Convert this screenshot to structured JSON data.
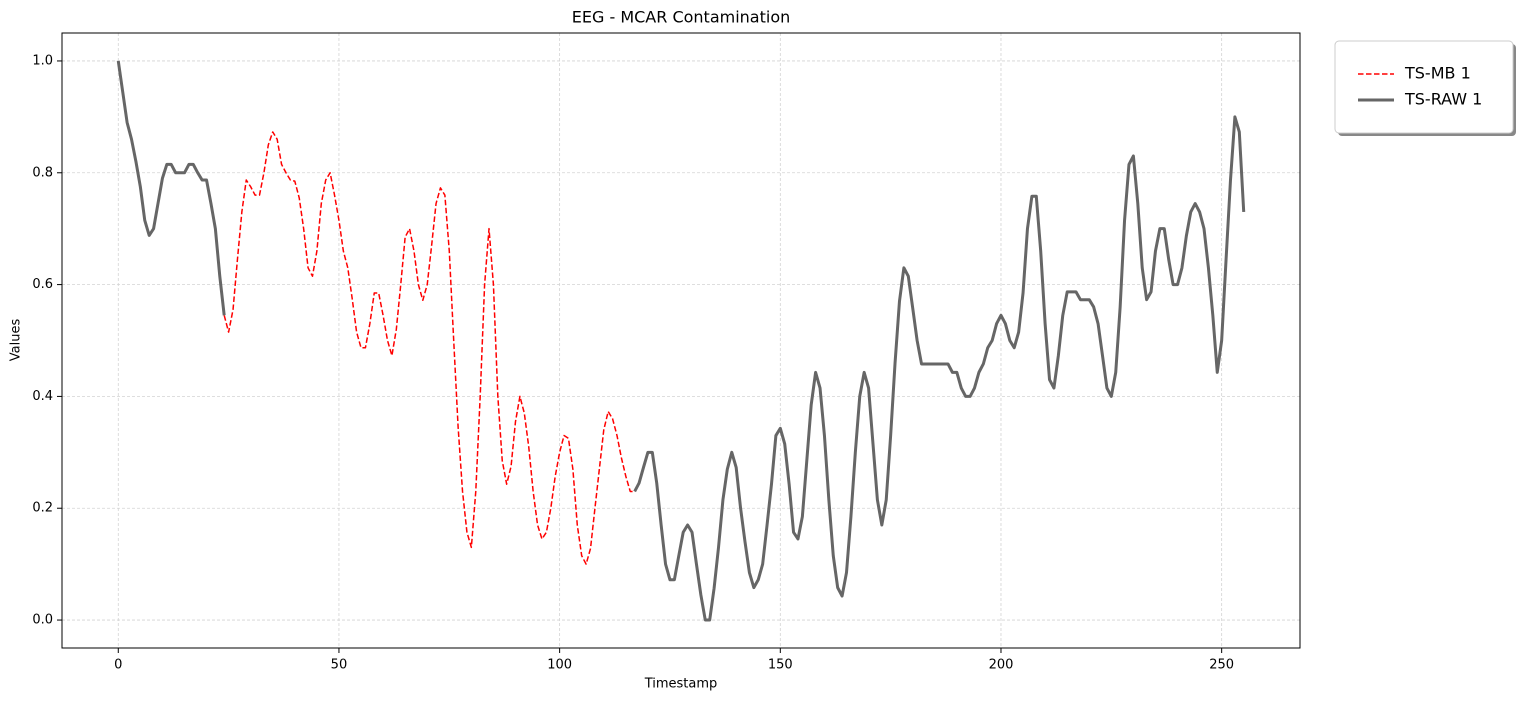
{
  "chart_data": {
    "type": "line",
    "title": "EEG - MCAR Contamination",
    "x_label": "Timestamp",
    "y_label": "Values",
    "x": [
      0,
      1,
      2,
      3,
      4,
      5,
      6,
      7,
      8,
      9,
      10,
      11,
      12,
      13,
      14,
      15,
      16,
      17,
      18,
      19,
      20,
      21,
      22,
      23,
      24,
      25,
      26,
      27,
      28,
      29,
      30,
      31,
      32,
      33,
      34,
      35,
      36,
      37,
      38,
      39,
      40,
      41,
      42,
      43,
      44,
      45,
      46,
      47,
      48,
      49,
      50,
      51,
      52,
      53,
      54,
      55,
      56,
      57,
      58,
      59,
      60,
      61,
      62,
      63,
      64,
      65,
      66,
      67,
      68,
      69,
      70,
      71,
      72,
      73,
      74,
      75,
      76,
      77,
      78,
      79,
      80,
      81,
      82,
      83,
      84,
      85,
      86,
      87,
      88,
      89,
      90,
      91,
      92,
      93,
      94,
      95,
      96,
      97,
      98,
      99,
      100,
      101,
      102,
      103,
      104,
      105,
      106,
      107,
      108,
      109,
      110,
      111,
      112,
      113,
      114,
      115,
      116,
      117,
      118,
      119,
      120,
      121,
      122,
      123,
      124,
      125,
      126,
      127,
      128,
      129,
      130,
      131,
      132,
      133,
      134,
      135,
      136,
      137,
      138,
      139,
      140,
      141,
      142,
      143,
      144,
      145,
      146,
      147,
      148,
      149,
      150,
      151,
      152,
      153,
      154,
      155,
      156,
      157,
      158,
      159,
      160,
      161,
      162,
      163,
      164,
      165,
      166,
      167,
      168,
      169,
      170,
      171,
      172,
      173,
      174,
      175,
      176,
      177,
      178,
      179,
      180,
      181,
      182,
      183,
      184,
      185,
      186,
      187,
      188,
      189,
      190,
      191,
      192,
      193,
      194,
      195,
      196,
      197,
      198,
      199,
      200,
      201,
      202,
      203,
      204,
      205,
      206,
      207,
      208,
      209,
      210,
      211,
      212,
      213,
      214,
      215,
      216,
      217,
      218,
      219,
      220,
      221,
      222,
      223,
      224,
      225,
      226,
      227,
      228,
      229,
      230,
      231,
      232,
      233,
      234,
      235,
      236,
      237,
      238,
      239,
      240,
      241,
      242,
      243,
      244,
      245,
      246,
      247,
      248,
      249,
      250,
      251,
      252,
      253,
      254,
      255
    ],
    "series": [
      {
        "name": "TS-MB 1",
        "color": "#ff0000",
        "linestyle": "dashed",
        "linewidth": 1.5,
        "values": [
          null,
          null,
          null,
          null,
          null,
          null,
          null,
          null,
          null,
          null,
          null,
          null,
          null,
          null,
          null,
          null,
          null,
          null,
          null,
          null,
          null,
          null,
          null,
          null,
          0.545,
          0.515,
          0.555,
          0.645,
          0.73,
          0.787,
          0.775,
          0.76,
          0.76,
          0.8,
          0.85,
          0.873,
          0.86,
          0.815,
          0.8,
          0.787,
          0.785,
          0.755,
          0.7,
          0.63,
          0.615,
          0.66,
          0.745,
          0.787,
          0.8,
          0.76,
          0.715,
          0.66,
          0.63,
          0.575,
          0.515,
          0.487,
          0.487,
          0.53,
          0.585,
          0.585,
          0.545,
          0.5,
          0.473,
          0.52,
          0.6,
          0.685,
          0.7,
          0.66,
          0.6,
          0.572,
          0.6,
          0.67,
          0.745,
          0.773,
          0.76,
          0.66,
          0.5,
          0.345,
          0.23,
          0.157,
          0.13,
          0.23,
          0.4,
          0.6,
          0.7,
          0.6,
          0.4,
          0.285,
          0.243,
          0.275,
          0.355,
          0.4,
          0.37,
          0.31,
          0.23,
          0.17,
          0.145,
          0.157,
          0.2,
          0.257,
          0.3,
          0.33,
          0.325,
          0.27,
          0.17,
          0.115,
          0.1,
          0.128,
          0.2,
          0.27,
          0.34,
          0.373,
          0.36,
          0.33,
          0.29,
          0.257,
          0.23,
          0.23,
          null,
          null,
          null,
          null,
          null,
          null,
          null,
          null,
          null,
          null,
          null,
          null,
          null,
          null,
          null,
          null,
          null,
          null,
          null,
          null,
          null,
          null,
          null,
          null,
          null,
          null,
          null,
          null,
          null,
          null,
          null,
          null,
          null,
          null,
          null,
          null,
          null,
          null,
          null,
          null,
          null,
          null,
          null,
          null,
          null,
          null,
          null,
          null,
          null,
          null,
          null,
          null,
          null,
          null,
          null,
          null,
          null,
          null,
          null,
          null,
          null,
          null,
          null,
          null,
          null,
          null,
          null,
          null,
          null,
          null,
          null,
          null,
          null,
          null,
          null,
          null,
          null,
          null,
          null,
          null,
          null,
          null,
          null,
          null,
          null,
          null,
          null,
          null,
          null,
          null,
          null,
          null,
          null,
          null,
          null,
          null,
          null,
          null,
          null,
          null,
          null,
          null,
          null,
          null,
          null,
          null,
          null,
          null,
          null,
          null,
          null,
          null,
          null,
          null,
          null,
          null,
          null,
          null,
          null,
          null,
          null,
          null,
          null,
          null,
          null,
          null,
          null,
          null,
          null,
          null,
          null,
          null,
          null,
          null,
          null,
          null,
          null,
          null
        ]
      },
      {
        "name": "TS-RAW 1",
        "color": "#666666",
        "linestyle": "solid",
        "linewidth": 3,
        "values": [
          1.0,
          0.945,
          0.89,
          0.86,
          0.82,
          0.775,
          0.715,
          0.688,
          0.7,
          0.745,
          0.79,
          0.815,
          0.815,
          0.8,
          0.8,
          0.8,
          0.815,
          0.815,
          0.8,
          0.787,
          0.787,
          0.745,
          0.7,
          0.615,
          0.545,
          null,
          null,
          null,
          null,
          null,
          null,
          null,
          null,
          null,
          null,
          null,
          null,
          null,
          null,
          null,
          null,
          null,
          null,
          null,
          null,
          null,
          null,
          null,
          null,
          null,
          null,
          null,
          null,
          null,
          null,
          null,
          null,
          null,
          null,
          null,
          null,
          null,
          null,
          null,
          null,
          null,
          null,
          null,
          null,
          null,
          null,
          null,
          null,
          null,
          null,
          null,
          null,
          null,
          null,
          null,
          null,
          null,
          null,
          null,
          null,
          null,
          null,
          null,
          null,
          null,
          null,
          null,
          null,
          null,
          null,
          null,
          null,
          null,
          null,
          null,
          null,
          null,
          null,
          null,
          null,
          null,
          null,
          null,
          null,
          null,
          null,
          null,
          null,
          null,
          null,
          null,
          null,
          0.23,
          0.245,
          0.273,
          0.3,
          0.3,
          0.245,
          0.17,
          0.1,
          0.072,
          0.072,
          0.115,
          0.157,
          0.17,
          0.157,
          0.1,
          0.045,
          0.0,
          0.0,
          0.057,
          0.13,
          0.215,
          0.27,
          0.3,
          0.273,
          0.2,
          0.14,
          0.085,
          0.058,
          0.072,
          0.1,
          0.17,
          0.243,
          0.33,
          0.343,
          0.315,
          0.243,
          0.157,
          0.145,
          0.185,
          0.285,
          0.385,
          0.443,
          0.415,
          0.33,
          0.215,
          0.115,
          0.058,
          0.043,
          0.085,
          0.185,
          0.3,
          0.4,
          0.443,
          0.415,
          0.315,
          0.215,
          0.17,
          0.215,
          0.33,
          0.46,
          0.57,
          0.63,
          0.615,
          0.558,
          0.5,
          0.458,
          0.458,
          0.458,
          0.458,
          0.458,
          0.458,
          0.458,
          0.443,
          0.443,
          0.415,
          0.4,
          0.4,
          0.415,
          0.443,
          0.458,
          0.487,
          0.5,
          0.53,
          0.545,
          0.53,
          0.5,
          0.487,
          0.515,
          0.585,
          0.7,
          0.758,
          0.758,
          0.66,
          0.53,
          0.43,
          0.415,
          0.473,
          0.545,
          0.587,
          0.587,
          0.587,
          0.573,
          0.573,
          0.573,
          0.56,
          0.53,
          0.473,
          0.415,
          0.4,
          0.443,
          0.56,
          0.715,
          0.815,
          0.83,
          0.745,
          0.63,
          0.573,
          0.587,
          0.66,
          0.7,
          0.7,
          0.645,
          0.6,
          0.6,
          0.63,
          0.687,
          0.73,
          0.745,
          0.73,
          0.7,
          0.63,
          0.545,
          0.443,
          0.5,
          0.645,
          0.787,
          0.9,
          0.873,
          0.73
        ]
      }
    ],
    "xlim": [
      -12.75,
      267.75
    ],
    "xticks": [
      0,
      50,
      100,
      150,
      200,
      250
    ],
    "ylim": [
      -0.05,
      1.05
    ],
    "yticks": [
      {
        "value": 0,
        "label": "0.0"
      },
      0.2,
      0.4,
      0.6,
      0.8,
      {
        "value": 1,
        "label": "1.0"
      }
    ],
    "grid": true,
    "legend": "outside upper right"
  }
}
